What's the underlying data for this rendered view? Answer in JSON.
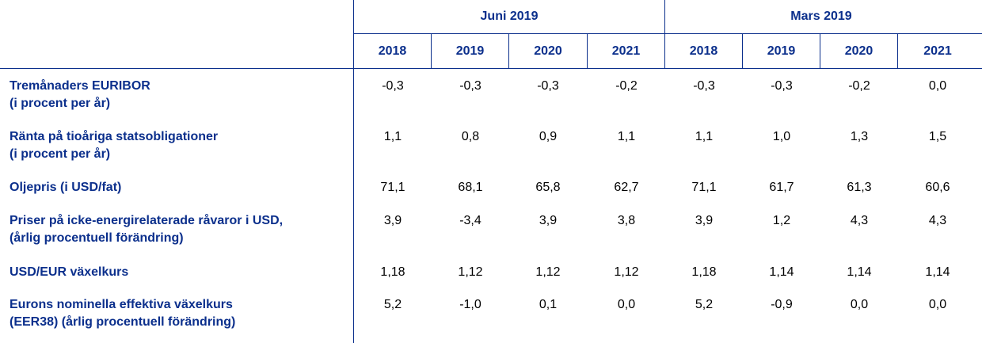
{
  "groups": [
    {
      "label": "Juni 2019"
    },
    {
      "label": "Mars 2019"
    }
  ],
  "years": [
    "2018",
    "2019",
    "2020",
    "2021",
    "2018",
    "2019",
    "2020",
    "2021"
  ],
  "rows": [
    {
      "label": "Tremånaders EURIBOR\n(i procent per år)",
      "values": [
        "-0,3",
        "-0,3",
        "-0,3",
        "-0,2",
        "-0,3",
        "-0,3",
        "-0,2",
        "0,0"
      ]
    },
    {
      "label": "Ränta på tioåriga statsobligationer\n(i procent per år)",
      "values": [
        "1,1",
        "0,8",
        "0,9",
        "1,1",
        "1,1",
        "1,0",
        "1,3",
        "1,5"
      ]
    },
    {
      "label": "Oljepris (i USD/fat)",
      "values": [
        "71,1",
        "68,1",
        "65,8",
        "62,7",
        "71,1",
        "61,7",
        "61,3",
        "60,6"
      ]
    },
    {
      "label": "Priser på icke-energirelaterade råvaror i USD,\n(årlig procentuell förändring)",
      "values": [
        "3,9",
        "-3,4",
        "3,9",
        "3,8",
        "3,9",
        "1,2",
        "4,3",
        "4,3"
      ]
    },
    {
      "label": "USD/EUR växelkurs",
      "values": [
        "1,18",
        "1,12",
        "1,12",
        "1,12",
        "1,18",
        "1,14",
        "1,14",
        "1,14"
      ]
    },
    {
      "label": "Eurons nominella effektiva växelkurs\n(EER38) (årlig procentuell förändring)",
      "values": [
        "5,2",
        "-1,0",
        "0,1",
        "0,0",
        "5,2",
        "-0,9",
        "0,0",
        "0,0"
      ]
    }
  ]
}
